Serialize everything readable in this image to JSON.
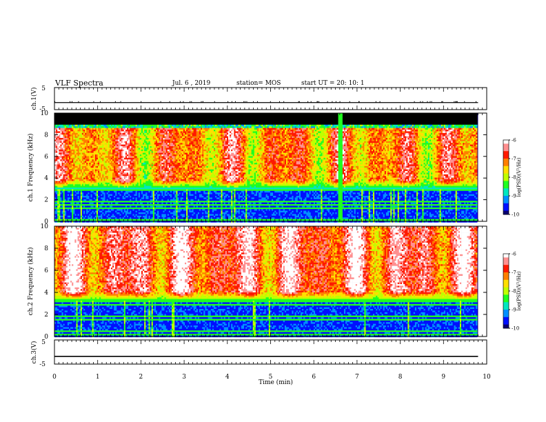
{
  "header": {
    "title": "VLF Spectra",
    "date": "Jul. 6 , 2019",
    "station": "station= MOS",
    "start_ut": "start UT = 20: 10: 1"
  },
  "chart_data": [
    {
      "type": "line",
      "name": "ch.1 voltage",
      "ylabel": "ch.1(V)",
      "xlim": [
        0,
        10
      ],
      "ylim": [
        -5,
        5
      ],
      "y_ticks": [
        "5",
        "-5"
      ],
      "x": [
        0,
        9.8
      ],
      "values": [
        -1.8,
        -1.8
      ]
    },
    {
      "type": "heatmap",
      "name": "ch.1 spectrogram",
      "ylabel": "ch.1 Frequency (kHz)",
      "xlim": [
        0,
        10
      ],
      "ylim": [
        0,
        10
      ],
      "x_extent": [
        0,
        9.8
      ],
      "y_ticks": [
        "0",
        "2",
        "4",
        "6",
        "8",
        "10"
      ],
      "colorbar": {
        "label": "log(PSD)(V²/Hz)",
        "range": [
          -10,
          -6
        ],
        "ticks": [
          "-6",
          "-7",
          "-8",
          "-9",
          "-10"
        ]
      },
      "noise_floor_khz": 3.0,
      "saturation_top_khz": 8.7,
      "black_band_khz": [
        9.0,
        10.0
      ],
      "data_gap_min": 6.6
    },
    {
      "type": "heatmap",
      "name": "ch.2 spectrogram",
      "ylabel": "ch.2 Frequency (kHz)",
      "xlim": [
        0,
        10
      ],
      "ylim": [
        0,
        10
      ],
      "x_extent": [
        0,
        9.8
      ],
      "y_ticks": [
        "0",
        "2",
        "4",
        "6",
        "8",
        "10"
      ],
      "colorbar": {
        "label": "log(PSD)(V²/Hz)",
        "range": [
          -10,
          -6
        ],
        "ticks": [
          "-6",
          "-7",
          "-8",
          "-9",
          "-10"
        ]
      },
      "noise_floor_khz": 3.3,
      "saturation_top_khz": 10.0
    },
    {
      "type": "line",
      "name": "ch.3 voltage",
      "ylabel": "ch.3(V)",
      "xlabel": "Time (min)",
      "xlim": [
        0,
        10
      ],
      "ylim": [
        -5,
        5
      ],
      "y_ticks": [
        "5",
        "-5"
      ],
      "x_ticks": [
        "0",
        "1",
        "2",
        "3",
        "4",
        "5",
        "6",
        "7",
        "8",
        "9",
        "10"
      ],
      "x": [
        0,
        9.8
      ],
      "values": [
        -1.8,
        -1.8
      ]
    }
  ],
  "colors": {
    "cmap": [
      "#0a0070",
      "#0010ff",
      "#0090ff",
      "#00e8c0",
      "#20ff20",
      "#c0ff00",
      "#ffe000",
      "#ff8000",
      "#ff1a00",
      "#ff9090",
      "#ffffff"
    ],
    "ink": "#000000"
  }
}
